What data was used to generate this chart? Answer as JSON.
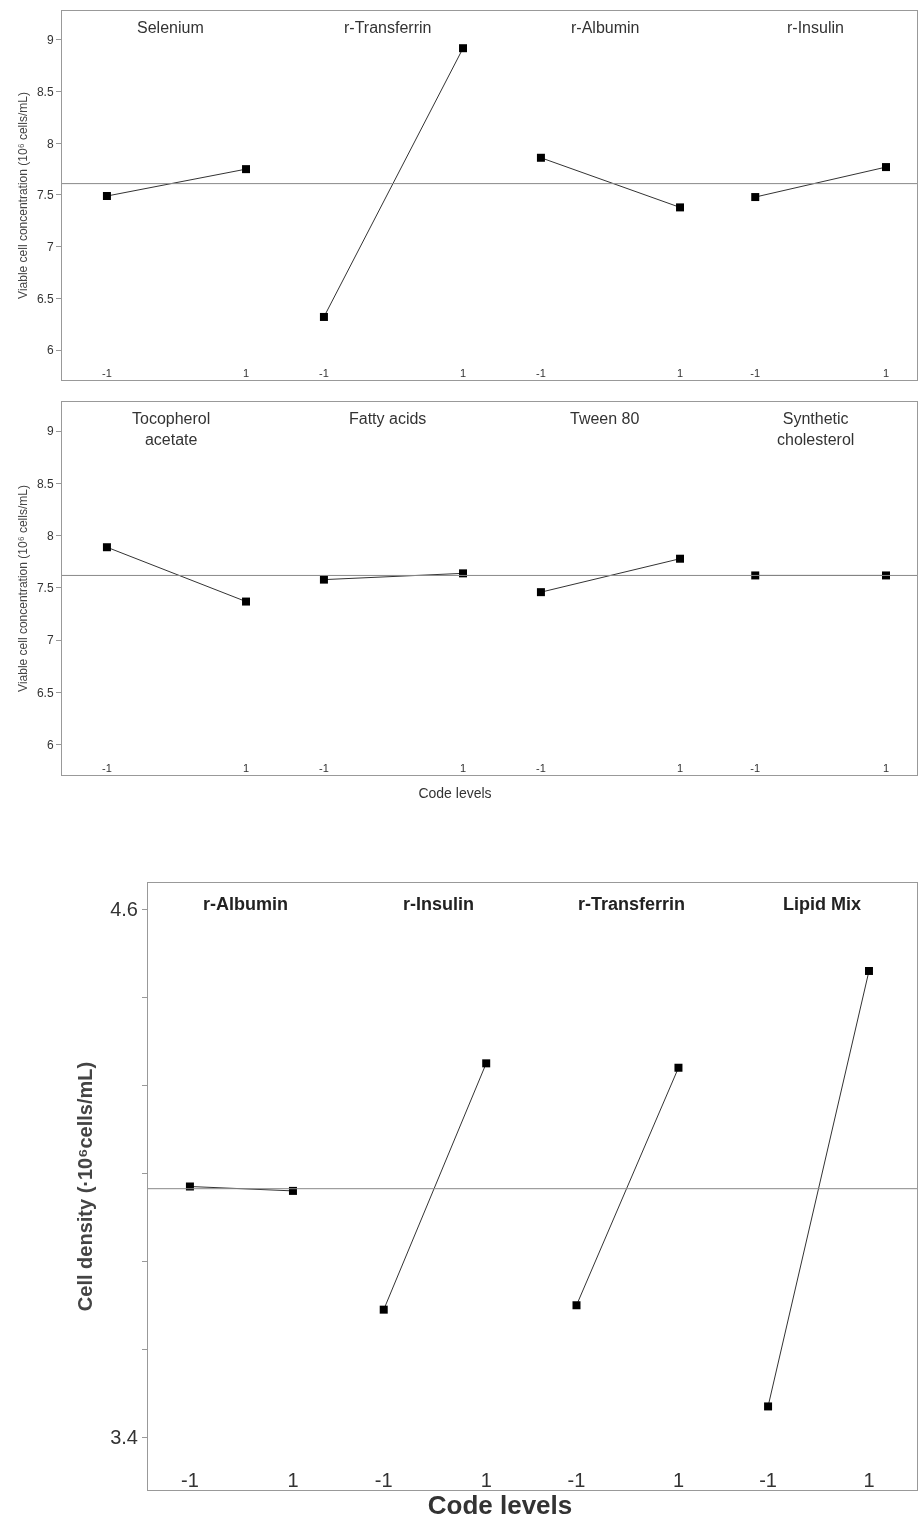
{
  "chart_data": [
    {
      "type": "line",
      "title": "Selenium",
      "ylabel": "Viable cell concentration (10⁶ cells/mL)",
      "categories": [
        "-1",
        "1"
      ],
      "series": [
        {
          "color": "#333333",
          "values": [
            7.49,
            7.75
          ]
        }
      ],
      "ylim": [
        5.71,
        9.28
      ],
      "yticks": [
        6,
        6.5,
        7,
        7.5,
        8,
        8.5,
        9
      ],
      "ref_lines": [
        {
          "axis": "y",
          "value": 7.61
        }
      ],
      "marker": "square"
    },
    {
      "type": "line",
      "title": "r-Transferrin",
      "categories": [
        "-1",
        "1"
      ],
      "series": [
        {
          "color": "#333333",
          "values": [
            6.32,
            8.92
          ]
        }
      ],
      "ylim": [
        5.71,
        9.28
      ],
      "ref_lines": [
        {
          "axis": "y",
          "value": 7.61
        }
      ],
      "marker": "square",
      "tick_labels": "x"
    },
    {
      "type": "line",
      "title": "r-Albumin",
      "categories": [
        "-1",
        "1"
      ],
      "series": [
        {
          "color": "#333333",
          "values": [
            7.86,
            7.38
          ]
        }
      ],
      "ylim": [
        5.71,
        9.28
      ],
      "ref_lines": [
        {
          "axis": "y",
          "value": 7.61
        }
      ],
      "marker": "square",
      "tick_labels": "x"
    },
    {
      "type": "line",
      "title": "r-Insulin",
      "categories": [
        "-1",
        "1"
      ],
      "series": [
        {
          "color": "#333333",
          "values": [
            7.48,
            7.77
          ]
        }
      ],
      "ylim": [
        5.71,
        9.28
      ],
      "ref_lines": [
        {
          "axis": "y",
          "value": 7.61
        }
      ],
      "marker": "square",
      "tick_labels": "x"
    },
    {
      "type": "line",
      "title": "Tocopherol\nacetate",
      "ylabel": "Viable cell concentration (10⁶ cells/mL)",
      "categories": [
        "-1",
        "1"
      ],
      "series": [
        {
          "color": "#333333",
          "values": [
            7.89,
            7.37
          ]
        }
      ],
      "ylim": [
        5.71,
        9.28
      ],
      "yticks": [
        6,
        6.5,
        7,
        7.5,
        8,
        8.5,
        9
      ],
      "ref_lines": [
        {
          "axis": "y",
          "value": 7.62
        }
      ],
      "marker": "square"
    },
    {
      "type": "line",
      "title": "Fatty acids",
      "xlabel": "Code levels",
      "categories": [
        "-1",
        "1"
      ],
      "series": [
        {
          "color": "#333333",
          "values": [
            7.58,
            7.64
          ]
        }
      ],
      "ylim": [
        5.71,
        9.28
      ],
      "ref_lines": [
        {
          "axis": "y",
          "value": 7.62
        }
      ],
      "marker": "square",
      "tick_labels": "x"
    },
    {
      "type": "line",
      "title": "Tween 80",
      "categories": [
        "-1",
        "1"
      ],
      "series": [
        {
          "color": "#333333",
          "values": [
            7.46,
            7.78
          ]
        }
      ],
      "ylim": [
        5.71,
        9.28
      ],
      "ref_lines": [
        {
          "axis": "y",
          "value": 7.62
        }
      ],
      "marker": "square",
      "tick_labels": "x"
    },
    {
      "type": "line",
      "title": "Synthetic\ncholesterol",
      "categories": [
        "-1",
        "1"
      ],
      "series": [
        {
          "color": "#333333",
          "values": [
            7.62,
            7.62
          ]
        }
      ],
      "ylim": [
        5.71,
        9.28
      ],
      "ref_lines": [
        {
          "axis": "y",
          "value": 7.62
        }
      ],
      "marker": "square",
      "tick_labels": "x"
    },
    {
      "type": "line",
      "title": "r-Albumin",
      "ylabel": "Cell density (·10⁶cells/mL)",
      "categories": [
        "-1",
        "1"
      ],
      "series": [
        {
          "color": "#333333",
          "values": [
            3.97,
            3.96
          ]
        }
      ],
      "ylim": [
        3.28,
        4.66
      ],
      "yticks": [
        {
          "value": 3.4,
          "label": "3.4"
        },
        {
          "value": 3.6,
          "label": null
        },
        {
          "value": 3.8,
          "label": null
        },
        {
          "value": 4.0,
          "label": null
        },
        {
          "value": 4.2,
          "label": null
        },
        {
          "value": 4.4,
          "label": null
        },
        {
          "value": 4.6,
          "label": "4.6"
        }
      ],
      "ref_lines": [
        {
          "axis": "y",
          "value": 3.965
        }
      ],
      "marker": "square"
    },
    {
      "type": "line",
      "title": "r-Insulin",
      "xlabel": "Code levels",
      "categories": [
        "-1",
        "1"
      ],
      "series": [
        {
          "color": "#333333",
          "values": [
            3.69,
            4.25
          ]
        }
      ],
      "ylim": [
        3.28,
        4.66
      ],
      "ref_lines": [
        {
          "axis": "y",
          "value": 3.965
        }
      ],
      "marker": "square",
      "tick_labels": "x"
    },
    {
      "type": "line",
      "title": "r-Transferrin",
      "categories": [
        "-1",
        "1"
      ],
      "series": [
        {
          "color": "#333333",
          "values": [
            3.7,
            4.24
          ]
        }
      ],
      "ylim": [
        3.28,
        4.66
      ],
      "ref_lines": [
        {
          "axis": "y",
          "value": 3.965
        }
      ],
      "marker": "square",
      "tick_labels": "x"
    },
    {
      "type": "line",
      "title": "Lipid Mix",
      "categories": [
        "-1",
        "1"
      ],
      "series": [
        {
          "color": "#333333",
          "values": [
            3.47,
            4.46
          ]
        }
      ],
      "ylim": [
        3.28,
        4.66
      ],
      "ref_lines": [
        {
          "axis": "y",
          "value": 3.965
        }
      ],
      "marker": "square",
      "tick_labels": "x"
    }
  ]
}
